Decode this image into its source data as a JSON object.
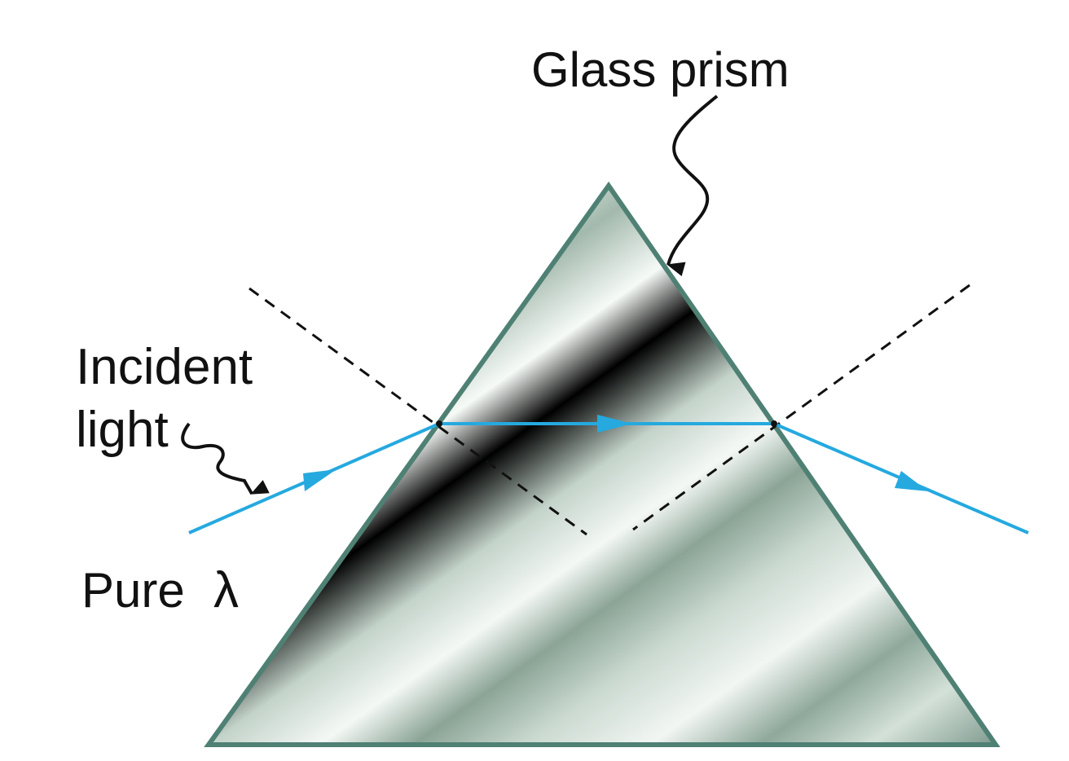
{
  "labels": {
    "prism": "Glass prism",
    "incident_line1": "Incident",
    "incident_line2": "light",
    "pure": "Pure",
    "lambda": "λ"
  },
  "colors": {
    "prism_edge": "#4f8074",
    "prism_fill_dark": "#7f9a8e",
    "prism_fill_light": "#f4f8f5",
    "ray": "#25a9df",
    "dashed": "#111111",
    "text": "#111111"
  }
}
